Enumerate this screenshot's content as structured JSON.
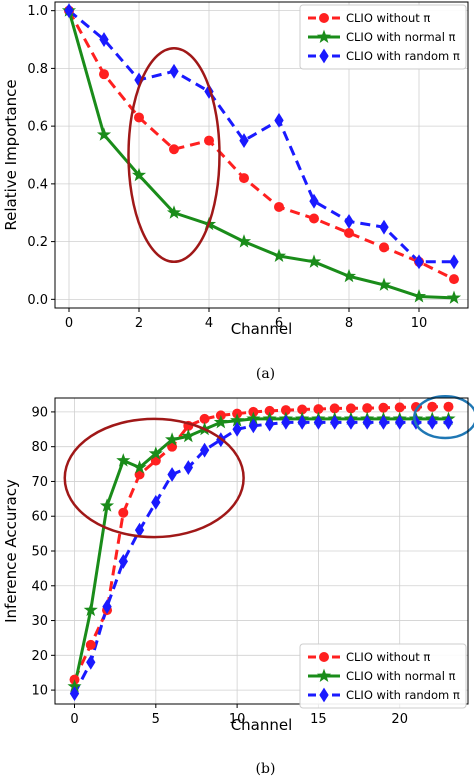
{
  "chart_data": [
    {
      "type": "line",
      "caption": "(a)",
      "xlabel": "Channel",
      "ylabel": "Relative Importance",
      "xlim": [
        -0.4,
        11.4
      ],
      "ylim": [
        -0.03,
        1.03
      ],
      "xticks": [
        0,
        2,
        4,
        6,
        8,
        10
      ],
      "yticks": [
        0.0,
        0.2,
        0.4,
        0.6,
        0.8,
        1.0
      ],
      "ytick_labels": [
        "0.0",
        "0.2",
        "0.4",
        "0.6",
        "0.8",
        "1.0"
      ],
      "grid": true,
      "legend_position": "top-right",
      "series": [
        {
          "name": "CLIO without π",
          "color": "#ff2020",
          "style": "dashed",
          "marker": "circle",
          "x": [
            0,
            1,
            2,
            3,
            4,
            5,
            6,
            7,
            8,
            9,
            10,
            11
          ],
          "y": [
            1.0,
            0.78,
            0.63,
            0.52,
            0.55,
            0.42,
            0.32,
            0.28,
            0.23,
            0.18,
            0.13,
            0.07
          ]
        },
        {
          "name": "CLIO with normal π",
          "color": "#1a8c1a",
          "style": "solid",
          "marker": "star",
          "x": [
            0,
            1,
            2,
            3,
            4,
            5,
            6,
            7,
            8,
            9,
            10,
            11
          ],
          "y": [
            1.0,
            0.57,
            0.43,
            0.3,
            0.26,
            0.2,
            0.15,
            0.13,
            0.08,
            0.05,
            0.01,
            0.005
          ]
        },
        {
          "name": "CLIO with random π",
          "color": "#1a1aff",
          "style": "dashed",
          "marker": "diamond",
          "x": [
            0,
            1,
            2,
            3,
            4,
            5,
            6,
            7,
            8,
            9,
            10,
            11
          ],
          "y": [
            1.0,
            0.9,
            0.76,
            0.79,
            0.72,
            0.55,
            0.62,
            0.34,
            0.27,
            0.25,
            0.13,
            0.13
          ]
        }
      ],
      "annotations": [
        {
          "shape": "ellipse",
          "color": "#a01818",
          "cx": 3.0,
          "cy": 0.5,
          "rx": 1.3,
          "ry": 0.37
        }
      ]
    },
    {
      "type": "line",
      "caption": "(b)",
      "xlabel": "Channel",
      "ylabel": "Inference Accuracy",
      "xlim": [
        -1.2,
        24.2
      ],
      "ylim": [
        6,
        94
      ],
      "xticks": [
        0,
        5,
        10,
        15,
        20
      ],
      "yticks": [
        10,
        20,
        30,
        40,
        50,
        60,
        70,
        80,
        90
      ],
      "ytick_labels": [
        "10",
        "20",
        "30",
        "40",
        "50",
        "60",
        "70",
        "80",
        "90"
      ],
      "grid": true,
      "legend_position": "bottom-right",
      "series": [
        {
          "name": "CLIO without π",
          "color": "#ff2020",
          "style": "dashed",
          "marker": "circle",
          "x": [
            0,
            1,
            2,
            3,
            4,
            5,
            6,
            7,
            8,
            9,
            10,
            11,
            12,
            13,
            14,
            15,
            16,
            17,
            18,
            19,
            20,
            21,
            22,
            23
          ],
          "y": [
            13,
            23,
            33,
            61,
            72,
            76,
            80,
            86,
            88,
            89,
            89.5,
            90,
            90.3,
            90.5,
            90.7,
            90.8,
            91,
            91,
            91.1,
            91.2,
            91.3,
            91.4,
            91.5,
            91.5
          ]
        },
        {
          "name": "CLIO with normal π",
          "color": "#1a8c1a",
          "style": "solid",
          "marker": "star",
          "x": [
            0,
            1,
            2,
            3,
            4,
            5,
            6,
            7,
            8,
            9,
            10,
            11,
            12,
            13,
            14,
            15,
            16,
            17,
            18,
            19,
            20,
            21,
            22,
            23
          ],
          "y": [
            11,
            33,
            63,
            76,
            74,
            78,
            82,
            83,
            85,
            87,
            87.5,
            88,
            88,
            88,
            88,
            88,
            88,
            88,
            88,
            88,
            88,
            88,
            88,
            88
          ]
        },
        {
          "name": "CLIO with random π",
          "color": "#1a1aff",
          "style": "dashed",
          "marker": "diamond",
          "x": [
            0,
            1,
            2,
            3,
            4,
            5,
            6,
            7,
            8,
            9,
            10,
            11,
            12,
            13,
            14,
            15,
            16,
            17,
            18,
            19,
            20,
            21,
            22,
            23
          ],
          "y": [
            9,
            18,
            34,
            47,
            56,
            64,
            72,
            74,
            79,
            82,
            85,
            86,
            86.5,
            87,
            87,
            87,
            87,
            87,
            87,
            87,
            87,
            87,
            87,
            87
          ]
        }
      ],
      "annotations": [
        {
          "shape": "ellipse",
          "color": "#a01818",
          "cx": 4.9,
          "cy": 71,
          "rx": 5.5,
          "ry": 17
        },
        {
          "shape": "circle",
          "color": "#1f77b4",
          "cx": 22.8,
          "cy": 88.5,
          "rx": 1.9,
          "ry": 6
        }
      ]
    }
  ]
}
